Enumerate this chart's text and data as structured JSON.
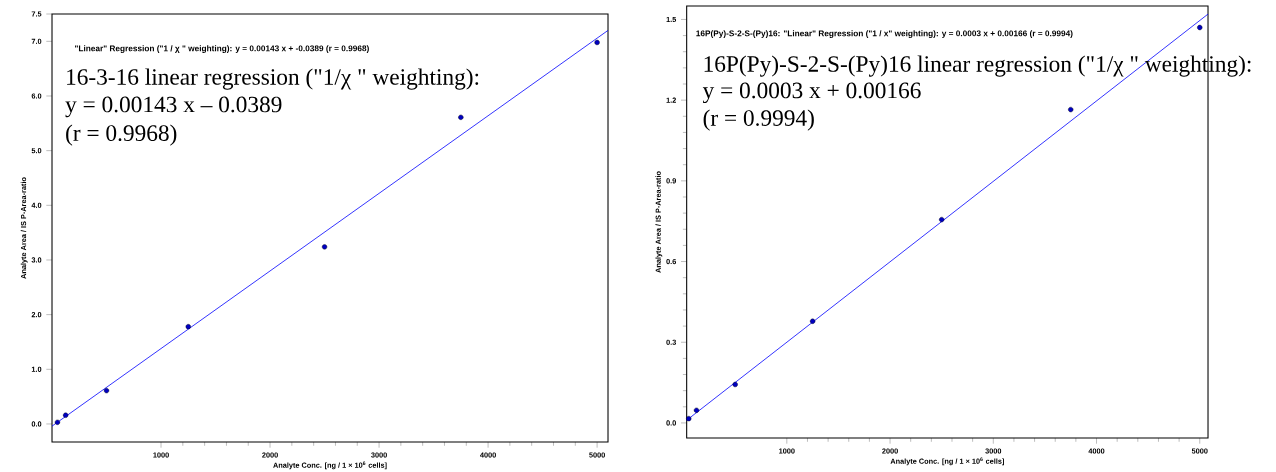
{
  "chart_data": [
    {
      "type": "scatter",
      "xlabel": "Analyte Conc. [ng / 1 × 10$^{6}$ cells]",
      "ylabel": "Analyte Area / IS P-Area-ratio",
      "xlim": [
        0,
        5100
      ],
      "ylim": [
        -0.33,
        7.5
      ],
      "xticks": [
        1000,
        2000,
        3000,
        4000,
        5000
      ],
      "yticks": [
        {
          "value": 0,
          "label": "0.0"
        },
        {
          "value": 1,
          "label": "1.0"
        },
        {
          "value": 2,
          "label": "2.0"
        },
        {
          "value": 3,
          "label": "3.0"
        },
        {
          "value": 4,
          "label": "4.0"
        },
        {
          "value": 5,
          "label": "5.0"
        },
        {
          "value": 6,
          "label": "6.0"
        },
        {
          "value": 7,
          "label": "7.0"
        },
        7.5
      ],
      "series": [
        {
          "marker": "circle",
          "color": "#0000c0",
          "x": [
            50,
            125,
            500,
            1250,
            2500,
            3750,
            5000
          ],
          "values": [
            0.03,
            0.16,
            0.61,
            1.78,
            3.24,
            5.61,
            6.98
          ]
        },
        {
          "type": "line",
          "color": "#0000ff",
          "x": [
            0,
            5100
          ],
          "values": [
            -0.04,
            7.2
          ]
        }
      ],
      "annotations": [
        "\"Linear\" Regression (\"1 / χ \" weighting): y = 0.00143 x + -0.0389 (r = 0.9968)",
        "16-3-16 linear regression (\"1/χ \" weighting):",
        "y = 0.00143 x – 0.0389",
        "(r = 0.9968)"
      ]
    },
    {
      "type": "scatter",
      "xlabel": "Analyte Conc. [ng / 1 × 10$^{6}$ cells]",
      "ylabel": "Analyte Area / IS P-Area-ratio",
      "xlim": [
        30,
        5080
      ],
      "ylim": [
        -0.056,
        1.55
      ],
      "xticks": [
        1000,
        2000,
        3000,
        4000,
        5000
      ],
      "yticks": [
        {
          "value": 0,
          "label": "0.0"
        },
        0.3,
        0.6,
        0.9,
        1.2,
        1.5
      ],
      "series": [
        {
          "marker": "circle",
          "color": "#0000c0",
          "x": [
            50,
            125,
            500,
            1250,
            2500,
            3750,
            5000
          ],
          "values": [
            0.016,
            0.047,
            0.143,
            0.378,
            0.756,
            1.165,
            1.47
          ]
        },
        {
          "type": "line",
          "color": "#0000ff",
          "x": [
            30,
            5080
          ],
          "values": [
            0.01,
            1.52
          ]
        }
      ],
      "annotations": [
        "16P(Py)-S-2-S-(Py)16: \"Linear\" Regression (\"1 / x\" weighting): y = 0.0003 x + 0.00166 (r = 0.9994)",
        "16P(Py)-S-2-S-(Py)16  linear regression (\"1/χ \" weighting):",
        "y = 0.0003 x + 0.00166",
        "(r = 0.9994)"
      ]
    }
  ]
}
